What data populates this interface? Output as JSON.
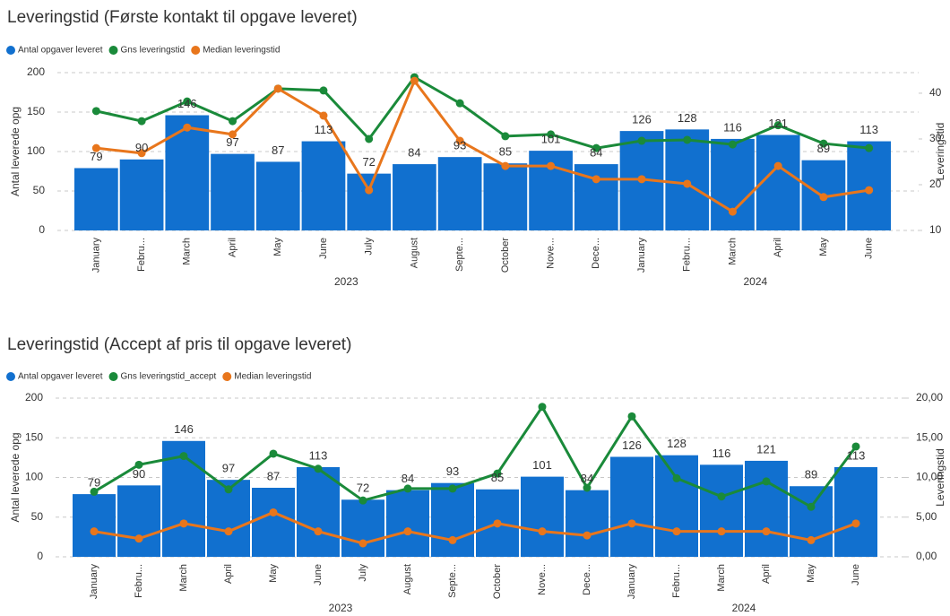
{
  "chart_data": [
    {
      "type": "bar_line",
      "title": "Leveringstid (Første kontakt til opgave leveret)",
      "y_label": "Antal leverede opg",
      "y2_label": "Leveringstid",
      "categories": [
        "January",
        "Febru...",
        "March",
        "April",
        "May",
        "June",
        "July",
        "August",
        "Septe...",
        "October",
        "Nove...",
        "Dece...",
        "January",
        "Febru...",
        "March",
        "April",
        "May",
        "June"
      ],
      "groups": [
        {
          "name": "2023",
          "count": 12
        },
        {
          "name": "2024",
          "count": 6
        }
      ],
      "ylim": [
        0,
        200
      ],
      "yticks": [
        0,
        50,
        100,
        150,
        200
      ],
      "y2lim": [
        10,
        44.5
      ],
      "y2ticks": [
        10,
        20,
        30,
        40
      ],
      "grid": true,
      "series": [
        {
          "name": "Antal opgaver leveret",
          "kind": "bar",
          "color": "#1170cf",
          "values": [
            79,
            90,
            146,
            97,
            87,
            113,
            72,
            84,
            93,
            85,
            101,
            84,
            126,
            128,
            116,
            121,
            89,
            113
          ]
        },
        {
          "name": "Gns leveringstid",
          "kind": "line",
          "axis": "y2",
          "color": "#1a8a3a",
          "values": [
            36.1,
            33.9,
            38.2,
            33.9,
            41,
            40.6,
            30,
            43.5,
            37.8,
            30.6,
            31,
            28,
            29.6,
            29.8,
            28.8,
            33,
            29,
            28
          ]
        },
        {
          "name": "Median leveringstid",
          "kind": "line",
          "axis": "y2",
          "color": "#e8761c",
          "values": [
            28,
            26.9,
            32.5,
            31,
            41,
            35.1,
            18.8,
            42.7,
            29.6,
            24.1,
            24.1,
            21.2,
            21.2,
            20.2,
            14.1,
            24.1,
            17.3,
            18.8
          ]
        }
      ]
    },
    {
      "type": "bar_line",
      "title": "Leveringstid (Accept af pris til opgave leveret)",
      "y_label": "Antal leverede opg",
      "y2_label": "Leveringstid",
      "categories": [
        "January",
        "Febru...",
        "March",
        "April",
        "May",
        "June",
        "July",
        "August",
        "Septe...",
        "October",
        "Nove...",
        "Dece...",
        "January",
        "Febru...",
        "March",
        "April",
        "May",
        "June"
      ],
      "groups": [
        {
          "name": "2023",
          "count": 12
        },
        {
          "name": "2024",
          "count": 6
        }
      ],
      "ylim": [
        0,
        200
      ],
      "yticks": [
        0,
        50,
        100,
        150,
        200
      ],
      "y2lim": [
        0,
        20
      ],
      "y2ticks": [
        {
          "value": 0,
          "label": "0,00"
        },
        {
          "value": 5,
          "label": "5,00"
        },
        {
          "value": 10,
          "label": "10,00"
        },
        {
          "value": 15,
          "label": "15,00"
        },
        {
          "value": 20,
          "label": "20,00"
        }
      ],
      "grid": true,
      "series": [
        {
          "name": "Antal opgaver leveret",
          "kind": "bar",
          "color": "#1170cf",
          "values": [
            79,
            90,
            146,
            97,
            87,
            113,
            72,
            84,
            93,
            85,
            101,
            84,
            126,
            128,
            116,
            121,
            89,
            113
          ]
        },
        {
          "name": "Gns leveringstid_accept",
          "kind": "line",
          "axis": "y2",
          "color": "#1a8a3a",
          "values": [
            8.2,
            11.6,
            12.7,
            8.5,
            13,
            11.1,
            7.1,
            8.6,
            8.6,
            10.5,
            18.9,
            8.7,
            17.7,
            9.9,
            7.6,
            9.5,
            6.3,
            13.9
          ]
        },
        {
          "name": "Median leveringstid",
          "kind": "line",
          "axis": "y2",
          "color": "#e8761c",
          "values": [
            3.2,
            2.3,
            4.2,
            3.2,
            5.6,
            3.2,
            1.7,
            3.2,
            2.1,
            4.2,
            3.2,
            2.7,
            4.2,
            3.2,
            3.2,
            3.2,
            2.1,
            4.2
          ]
        }
      ]
    }
  ]
}
